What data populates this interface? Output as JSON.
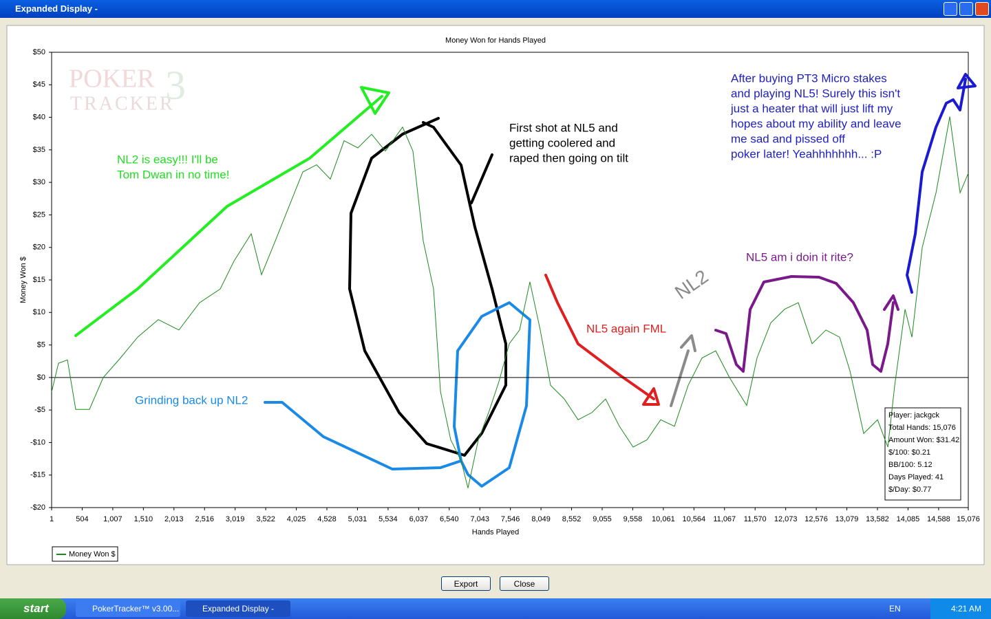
{
  "window": {
    "title": "Expanded Display -"
  },
  "chart_data": {
    "type": "line",
    "title": "Money Won for Hands Played",
    "xlabel": "Hands Played",
    "ylabel": "Money Won $",
    "watermark": [
      "POKER",
      "TRACKER",
      "3"
    ],
    "x": [
      1,
      114,
      261,
      397,
      623,
      850,
      1133,
      1416,
      1755,
      2095,
      2434,
      2774,
      3000,
      3283,
      3453,
      3679,
      3906,
      4132,
      4358,
      4585,
      4811,
      5037,
      5264,
      5490,
      5773,
      5943,
      6113,
      6282,
      6396,
      6565,
      6735,
      6848,
      7018,
      7188,
      7358,
      7527,
      7697,
      7867,
      8036,
      8206,
      8433,
      8659,
      8885,
      9112,
      9338,
      9564,
      9791,
      10017,
      10243,
      10470,
      10696,
      10923,
      11149,
      11432,
      11602,
      11828,
      12055,
      12281,
      12507,
      12734,
      12960,
      13130,
      13356,
      13583,
      13753,
      13866,
      14036,
      14149,
      14319,
      14545,
      14771,
      14941,
      15076
    ],
    "series": [
      {
        "name": "Money Won $",
        "color": "#1a8a1a",
        "values": [
          -2.2,
          2.2,
          2.7,
          -4.9,
          -4.9,
          0,
          3,
          6.2,
          8.9,
          7.3,
          11.5,
          13.6,
          17.9,
          22.1,
          15.8,
          21,
          26.3,
          31.6,
          32.7,
          30.5,
          36.4,
          35.3,
          37.4,
          34.8,
          38.5,
          34.8,
          21,
          13.6,
          -2.2,
          -9.6,
          -12.8,
          -17,
          -9.6,
          -5.4,
          -0.6,
          5.2,
          7.3,
          14.7,
          7.3,
          -1.2,
          -3.3,
          -6.5,
          -5.4,
          -3.3,
          -7.5,
          -10.7,
          -9.6,
          -6.5,
          -7.5,
          -1.2,
          3,
          4.1,
          0,
          -4.3,
          3,
          8.4,
          10.5,
          11.5,
          5.2,
          7.3,
          6.2,
          1,
          -8.6,
          -6.5,
          -10.7,
          -1.2,
          10.5,
          6.2,
          20,
          28.4,
          40.1,
          28.4,
          31.4
        ]
      }
    ],
    "xlim": [
      1,
      15076
    ],
    "xticks": [
      1,
      504,
      {
        "value": 1007,
        "label": "1,007"
      },
      {
        "value": 1510,
        "label": "1,510"
      },
      {
        "value": 2013,
        "label": "2,013"
      },
      {
        "value": 2516,
        "label": "2,516"
      },
      {
        "value": 3019,
        "label": "3,019"
      },
      {
        "value": 3522,
        "label": "3,522"
      },
      {
        "value": 4025,
        "label": "4,025"
      },
      {
        "value": 4528,
        "label": "4,528"
      },
      {
        "value": 5031,
        "label": "5,031"
      },
      {
        "value": 5534,
        "label": "5,534"
      },
      {
        "value": 6037,
        "label": "6,037"
      },
      {
        "value": 6540,
        "label": "6,540"
      },
      {
        "value": 7043,
        "label": "7,043"
      },
      {
        "value": 7546,
        "label": "7,546"
      },
      {
        "value": 8049,
        "label": "8,049"
      },
      {
        "value": 8552,
        "label": "8,552"
      },
      {
        "value": 9055,
        "label": "9,055"
      },
      {
        "value": 9558,
        "label": "9,558"
      },
      {
        "value": 10061,
        "label": "10,061"
      },
      {
        "value": 10564,
        "label": "10,564"
      },
      {
        "value": 11067,
        "label": "11,067"
      },
      {
        "value": 11570,
        "label": "11,570"
      },
      {
        "value": 12073,
        "label": "12,073"
      },
      {
        "value": 12576,
        "label": "12,576"
      },
      {
        "value": 13079,
        "label": "13,079"
      },
      {
        "value": 13582,
        "label": "13,582"
      },
      {
        "value": 14085,
        "label": "14,085"
      },
      {
        "value": 14588,
        "label": "14,588"
      },
      {
        "value": 15076,
        "label": "15,076"
      }
    ],
    "ylim": [
      -20,
      50
    ],
    "yticks": [
      {
        "value": -20,
        "label": "-$20"
      },
      {
        "value": -15,
        "label": "-$15"
      },
      {
        "value": -10,
        "label": "-$10"
      },
      {
        "value": -5,
        "label": "-$5"
      },
      {
        "value": 0,
        "label": "$0"
      },
      {
        "value": 5,
        "label": "$5"
      },
      {
        "value": 10,
        "label": "$10"
      },
      {
        "value": 15,
        "label": "$15"
      },
      {
        "value": 20,
        "label": "$20"
      },
      {
        "value": 25,
        "label": "$25"
      },
      {
        "value": 30,
        "label": "$30"
      },
      {
        "value": 35,
        "label": "$35"
      },
      {
        "value": 40,
        "label": "$40"
      },
      {
        "value": 45,
        "label": "$45"
      },
      {
        "value": 50,
        "label": "$50"
      }
    ],
    "grid": false,
    "legend": "bottom-left",
    "annotations": [
      {
        "lines": [
          "NL2 is easy!!! I'll be",
          "Tom Dwan in no time!"
        ],
        "color": "#22dd22"
      },
      {
        "lines": [
          "First shot at NL5 and",
          "getting coolered and",
          "raped then going on tilt"
        ],
        "color": "#000000"
      },
      {
        "lines": [
          "Grinding back up NL2"
        ],
        "color": "#1a8ae6"
      },
      {
        "lines": [
          "NL5 again FML"
        ],
        "color": "#e02020"
      },
      {
        "lines": [
          "NL2"
        ],
        "color": "#8a8a8a"
      },
      {
        "lines": [
          "NL5 am i doin it rite?"
        ],
        "color": "#7a1a8a"
      },
      {
        "lines": [
          "After buying PT3 Micro stakes",
          "and playing NL5! Surely this isn't",
          "just a heater that will just lift my",
          "hopes about my ability and leave",
          "me sad and pissed off",
          "poker later! Yeahhhhhhh... :P"
        ],
        "color": "#2020c0"
      }
    ]
  },
  "info_box": [
    "Player: jackgck",
    "Total Hands: 15,076",
    "Amount Won: $31.42",
    "$/100: $0.21",
    "BB/100: 5.12",
    "Days Played: 41",
    "$/Day: $0.77"
  ],
  "buttons": [
    "Export",
    "Close"
  ],
  "taskbar": {
    "start": "start",
    "tasks": [
      "PokerTracker™ v3.00...",
      "Expanded Display -"
    ],
    "lang": "EN",
    "clock": "4:21 AM"
  }
}
